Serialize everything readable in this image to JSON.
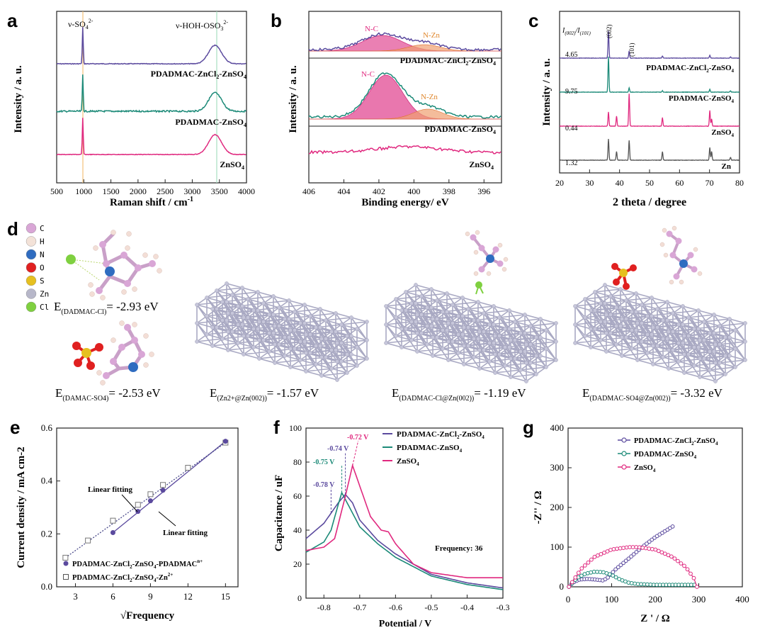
{
  "colors": {
    "purple": "#5b4a9e",
    "teal": "#1c8a78",
    "pink": "#e0297f",
    "gray": "#555555",
    "nc_fill": "#e3559a",
    "nzn_fill": "#f0a070"
  },
  "panel_labels": {
    "a": "a",
    "b": "b",
    "c": "c",
    "d": "d",
    "e": "e",
    "f": "f",
    "g": "g"
  },
  "panel_a": {
    "ylabel": "Intensity / a. u.",
    "xlabel": "Raman shift / cm",
    "xlabel_sup": "-1",
    "annot_so4": "ν-SO",
    "annot_so4_sub": "4",
    "annot_so4_sup": "2-",
    "annot_hoh": "ν-HOH-OSO",
    "annot_hoh_sub": "3",
    "annot_hoh_sup": "2-",
    "xticks": [
      "500",
      "1000",
      "1500",
      "2000",
      "2500",
      "3000",
      "3500",
      "4000"
    ],
    "legend": {
      "zncl2": [
        "PDADMAC-ZnCl",
        "2",
        "-ZnSO",
        "4"
      ],
      "znso4_p": [
        "PDADMAC-ZnSO",
        "4"
      ],
      "znso4": [
        "ZnSO",
        "4"
      ]
    }
  },
  "panel_b": {
    "ylabel": "Intensity / a. u.",
    "xlabel": "Binding energy/ eV",
    "xticks": [
      "406",
      "404",
      "402",
      "400",
      "398",
      "396"
    ],
    "nc": "N-C",
    "nzn": "N-Zn",
    "legend": {
      "zncl2": [
        "PDADMAC-ZnCl",
        "2",
        "-ZnSO",
        "4"
      ],
      "znso4_p": [
        "PDADMAC-ZnSO",
        "4"
      ],
      "znso4": [
        "ZnSO",
        "4"
      ]
    }
  },
  "panel_c": {
    "ylabel": "Intensity / a. u.",
    "xlabel": "2 theta / degree",
    "xticks": [
      "20",
      "30",
      "40",
      "50",
      "60",
      "70",
      "80"
    ],
    "ratio_label": [
      "I",
      "(002)",
      "/I",
      "(101)"
    ],
    "peak_002": "(002)",
    "peak_101": "(101)",
    "ratios": [
      "4.65",
      "9.75",
      "0.44",
      "1.32"
    ],
    "legend": {
      "zncl2": [
        "PDADMAC-ZnCl",
        "2",
        "-ZnSO",
        "4"
      ],
      "znso4_p": [
        "PDADMAC-ZnSO",
        "4"
      ],
      "znso4": [
        "ZnSO",
        "4"
      ],
      "zn": "Zn"
    }
  },
  "panel_d": {
    "elements": [
      "C",
      "H",
      "N",
      "O",
      "S",
      "Zn",
      "Cl"
    ],
    "element_colors": [
      "#d9a6d6",
      "#f3e2d8",
      "#2f6cc0",
      "#e02020",
      "#e6c020",
      "#b7b7c9",
      "#7fd040"
    ],
    "e1": {
      "pre": "E",
      "sub": "(DADMAC-Cl)",
      "val": "= -2.93 eV"
    },
    "e2": {
      "pre": "E",
      "sub": "(DAMAC-SO4)",
      "val": "= -2.53 eV"
    },
    "e3": {
      "pre": "E",
      "sub": "(Zn2+@Zn(002))",
      "val": "= -1.57 eV"
    },
    "e4": {
      "pre": "E",
      "sub": "(DADMAC-Cl@Zn(002))",
      "val": "= -1.19 eV"
    },
    "e5": {
      "pre": "E",
      "sub": "(DADMAC-SO4@Zn(002))",
      "val": "= -3.32 eV"
    }
  },
  "chart_data": [
    {
      "type": "line",
      "panel": "a",
      "title": "",
      "xlabel": "Raman shift / cm-1",
      "ylabel": "Intensity / a. u.",
      "xlim": [
        500,
        4000
      ],
      "series": [
        {
          "name": "PDADMAC-ZnCl2-ZnSO4",
          "peaks": [
            {
              "x": 981,
              "h": "sharp"
            },
            {
              "x": 3420,
              "h": "broad"
            }
          ]
        },
        {
          "name": "PDADMAC-ZnSO4",
          "peaks": [
            {
              "x": 981,
              "h": "sharp"
            },
            {
              "x": 3420,
              "h": "broad"
            }
          ]
        },
        {
          "name": "ZnSO4",
          "peaks": [
            {
              "x": 981,
              "h": "sharp"
            },
            {
              "x": 3400,
              "h": "broad"
            }
          ]
        }
      ]
    },
    {
      "type": "line",
      "panel": "b",
      "title": "",
      "xlabel": "Binding energy/ eV",
      "ylabel": "Intensity / a. u.",
      "xlim": [
        406,
        395
      ],
      "series": [
        {
          "name": "PDADMAC-ZnCl2-ZnSO4",
          "components": [
            {
              "name": "N-C",
              "center": 401.8
            },
            {
              "name": "N-Zn",
              "center": 399.5
            }
          ]
        },
        {
          "name": "PDADMAC-ZnSO4",
          "components": [
            {
              "name": "N-C",
              "center": 401.6
            },
            {
              "name": "N-Zn",
              "center": 399.2
            }
          ]
        },
        {
          "name": "ZnSO4",
          "components": []
        }
      ]
    },
    {
      "type": "line",
      "panel": "c",
      "title": "",
      "xlabel": "2 theta / degree",
      "ylabel": "Intensity / a. u.",
      "xlim": [
        20,
        80
      ],
      "peak_positions": [
        36.3,
        39.0,
        43.2,
        54.3,
        70.1,
        70.7,
        77.0
      ],
      "series": [
        {
          "name": "PDADMAC-ZnCl2-ZnSO4",
          "I002_I101": 4.65
        },
        {
          "name": "PDADMAC-ZnSO4",
          "I002_I101": 9.75
        },
        {
          "name": "ZnSO4",
          "I002_I101": 0.44
        },
        {
          "name": "Zn",
          "I002_I101": 1.32
        }
      ]
    },
    {
      "type": "scatter",
      "panel": "e",
      "xlabel": "√Frequency",
      "ylabel": "Current density  / mA cm-2",
      "xlim": [
        1.5,
        16
      ],
      "ylim": [
        0.0,
        0.6
      ],
      "xticks": [
        "3",
        "6",
        "9",
        "12",
        "15"
      ],
      "yticks": [
        "0.0",
        "0.2",
        "0.4",
        "0.6"
      ],
      "annotations": [
        "Linear fitting",
        "Linear fitting"
      ],
      "series": [
        {
          "name": "PDADMAC-ZnCl2-ZnSO4-PDADMAC",
          "name_parts": [
            "PDADMAC-ZnCl",
            "2",
            "-ZnSO",
            "4",
            "-PDADMAC",
            "n+"
          ],
          "marker": "filled",
          "x": [
            6,
            8,
            9,
            10,
            15
          ],
          "y": [
            0.205,
            0.285,
            0.325,
            0.365,
            0.55
          ]
        },
        {
          "name": "PDADMAC-ZnCl2-ZnSO4-Zn2+",
          "name_parts": [
            "PDADMAC-ZnCl",
            "2",
            "-ZnSO",
            "4",
            "-Zn",
            "2+"
          ],
          "marker": "open",
          "x": [
            2.2,
            4,
            6,
            8,
            9,
            10,
            12,
            15
          ],
          "y": [
            0.11,
            0.175,
            0.25,
            0.31,
            0.35,
            0.385,
            0.45,
            0.545
          ]
        }
      ]
    },
    {
      "type": "line",
      "panel": "f",
      "xlabel": "Potential / V",
      "ylabel": "Capacitance / uF",
      "xlim": [
        -0.85,
        -0.3
      ],
      "ylim": [
        0,
        100
      ],
      "xticks": [
        "-0.8",
        "-0.7",
        "-0.6",
        "-0.5",
        "-0.4",
        "-0.3"
      ],
      "yticks": [
        "0",
        "20",
        "40",
        "60",
        "80",
        "100"
      ],
      "annotation": "Frequency: 36",
      "peak_labels": [
        "-0.72 V",
        "-0.74 V",
        "-0.75 V",
        "-0.78 V"
      ],
      "series": [
        {
          "name": "PDADMAC-ZnCl2-ZnSO4",
          "name_parts": [
            "PDADMAC-ZnCl",
            "2",
            "-ZnSO",
            "4"
          ],
          "x": [
            -0.85,
            -0.8,
            -0.78,
            -0.76,
            -0.74,
            -0.72,
            -0.7,
            -0.65,
            -0.6,
            -0.5,
            -0.4,
            -0.3
          ],
          "y": [
            35,
            44,
            50,
            56,
            61,
            56,
            46,
            34,
            26,
            14,
            9,
            6
          ]
        },
        {
          "name": "PDADMAC-ZnSO4",
          "name_parts": [
            "PDADMAC-ZnSO",
            "4"
          ],
          "x": [
            -0.85,
            -0.8,
            -0.78,
            -0.76,
            -0.75,
            -0.73,
            -0.7,
            -0.65,
            -0.6,
            -0.5,
            -0.4,
            -0.3
          ],
          "y": [
            27,
            33,
            40,
            55,
            62,
            54,
            42,
            32,
            24,
            13,
            8,
            5
          ]
        },
        {
          "name": "ZnSO4",
          "name_parts": [
            "ZnSO",
            "4"
          ],
          "x": [
            -0.85,
            -0.8,
            -0.77,
            -0.74,
            -0.72,
            -0.7,
            -0.67,
            -0.64,
            -0.62,
            -0.6,
            -0.55,
            -0.5,
            -0.4,
            -0.3
          ],
          "y": [
            28,
            30,
            35,
            60,
            78,
            66,
            48,
            40,
            39,
            32,
            20,
            15,
            12,
            12
          ]
        }
      ]
    },
    {
      "type": "scatter",
      "panel": "g",
      "xlabel": "Z ' / Ω",
      "ylabel": "-Z'' / Ω",
      "xlim": [
        0,
        400
      ],
      "ylim": [
        0,
        400
      ],
      "xticks": [
        "0",
        "100",
        "200",
        "300",
        "400"
      ],
      "yticks": [
        "0",
        "100",
        "200",
        "300",
        "400"
      ],
      "series": [
        {
          "name": "PDADMAC-ZnCl2-ZnSO4",
          "name_parts": [
            "PDADMAC-ZnCl",
            "2",
            "-ZnSO",
            "4"
          ],
          "x": [
            2,
            10,
            25,
            45,
            65,
            80,
            90,
            110,
            140,
            170,
            200,
            240
          ],
          "y": [
            0,
            10,
            18,
            20,
            18,
            16,
            22,
            45,
            72,
            100,
            125,
            152
          ]
        },
        {
          "name": "PDADMAC-ZnSO4",
          "name_parts": [
            "PDADMAC-ZnSO",
            "4"
          ],
          "x": [
            2,
            20,
            40,
            60,
            80,
            100,
            120,
            140,
            160,
            180,
            200,
            230,
            260,
            290
          ],
          "y": [
            0,
            22,
            33,
            38,
            37,
            30,
            18,
            10,
            7,
            6,
            5,
            5,
            5,
            5
          ]
        },
        {
          "name": "ZnSO4",
          "name_parts": [
            "ZnSO",
            "4"
          ],
          "x": [
            2,
            30,
            60,
            100,
            140,
            160,
            200,
            240,
            270,
            290,
            296
          ],
          "y": [
            0,
            45,
            75,
            94,
            100,
            100,
            94,
            75,
            50,
            20,
            0
          ]
        }
      ]
    }
  ]
}
